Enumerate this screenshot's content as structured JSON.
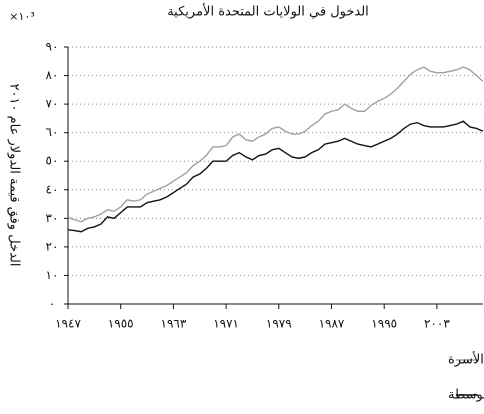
{
  "chart_data": {
    "type": "line",
    "title": "الدخول في الولايات المتحدة الأمريكية",
    "y_label": "الدخل وفق قيمة الدولار عام ٢٠١٠",
    "y_multiplier": "×١٠³",
    "x": [
      1947,
      1948,
      1949,
      1950,
      1951,
      1952,
      1953,
      1954,
      1955,
      1956,
      1957,
      1958,
      1959,
      1960,
      1961,
      1962,
      1963,
      1964,
      1965,
      1966,
      1967,
      1968,
      1969,
      1970,
      1971,
      1972,
      1973,
      1974,
      1975,
      1976,
      1977,
      1978,
      1979,
      1980,
      1981,
      1982,
      1983,
      1984,
      1985,
      1986,
      1987,
      1988,
      1989,
      1990,
      1991,
      1992,
      1993,
      1994,
      1995,
      1996,
      1997,
      1998,
      1999,
      2000,
      2001,
      2002,
      2003,
      2004,
      2005,
      2006,
      2007,
      2008,
      2009,
      2010
    ],
    "series": [
      {
        "name": "متوسط دخل الأسرة",
        "color": "#a0a0a0",
        "values": [
          30.4,
          29.5,
          28.8,
          30,
          30.5,
          31.5,
          33,
          32.5,
          34,
          36.5,
          36,
          36.5,
          38.5,
          39.5,
          40.5,
          41.5,
          43,
          44.5,
          46,
          48.5,
          50,
          52,
          55,
          55,
          55.5,
          58.5,
          59.5,
          57.5,
          57,
          58.5,
          59.5,
          61.5,
          62,
          60.5,
          59.5,
          59.5,
          60.5,
          62.5,
          64,
          66.5,
          67.5,
          68,
          70,
          68.5,
          67.5,
          67.5,
          69.5,
          71,
          72,
          73.5,
          75.5,
          78,
          80.5,
          82,
          83,
          81.5,
          81,
          81,
          81.5,
          82,
          83,
          82,
          80,
          78
        ]
      },
      {
        "name": "دخل الأسرة المتوسطة",
        "color": "#111111",
        "values": [
          26,
          25.7,
          25.3,
          26.5,
          27,
          28,
          30.5,
          30,
          32,
          34,
          34,
          34,
          35.5,
          36,
          36.5,
          37.5,
          39,
          40.5,
          42,
          44.5,
          45.5,
          47.5,
          50,
          50,
          50,
          52,
          53,
          51.5,
          50.5,
          52,
          52.5,
          54,
          54.5,
          53,
          51.5,
          51,
          51.5,
          53,
          54,
          56,
          56.5,
          57,
          58,
          57,
          56,
          55.5,
          55,
          56,
          57,
          58,
          59.5,
          61.5,
          63,
          63.5,
          62.5,
          62,
          62,
          62,
          62.5,
          63,
          64,
          62,
          61.5,
          60.5
        ]
      }
    ],
    "xlim": [
      1947,
      2010
    ],
    "xticks": [
      {
        "value": 1947,
        "label": "١٩٤٧"
      },
      {
        "value": 1955,
        "label": "١٩٥٥"
      },
      {
        "value": 1963,
        "label": "١٩٦٣"
      },
      {
        "value": 1971,
        "label": "١٩٧١"
      },
      {
        "value": 1979,
        "label": "١٩٧٩"
      },
      {
        "value": 1987,
        "label": "١٩٨٧"
      },
      {
        "value": 1995,
        "label": "١٩٩٥"
      },
      {
        "value": 2003,
        "label": "٢٠٠٣"
      }
    ],
    "ylim": [
      0,
      90
    ],
    "yticks": [
      {
        "value": 0,
        "label": "٠"
      },
      {
        "value": 10,
        "label": "١٠"
      },
      {
        "value": 20,
        "label": "٢٠"
      },
      {
        "value": 30,
        "label": "٣٠"
      },
      {
        "value": 40,
        "label": "٤٠"
      },
      {
        "value": 50,
        "label": "٥٠"
      },
      {
        "value": 60,
        "label": "٦٠"
      },
      {
        "value": 70,
        "label": "٧٠"
      },
      {
        "value": 80,
        "label": "٨٠"
      },
      {
        "value": 90,
        "label": "٩٠"
      }
    ],
    "grid": true
  }
}
